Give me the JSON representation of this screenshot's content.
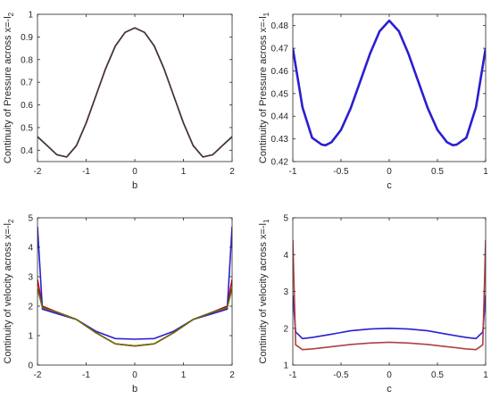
{
  "chart_data": [
    {
      "type": "line",
      "xlabel": "b",
      "ylabel": "Continuity of Pressure across x=-l",
      "ylabel_sub": "2",
      "xlim": [
        -2,
        2
      ],
      "ylim": [
        0.35,
        1.0
      ],
      "xticks": [
        -2,
        -1,
        0,
        1,
        2
      ],
      "yticks": [
        0.4,
        0.5,
        0.6,
        0.7,
        0.8,
        0.9,
        1
      ],
      "grid": false,
      "series": [
        {
          "color": "#c0000b",
          "x": [
            -2,
            -1.8,
            -1.6,
            -1.4,
            -1.2,
            -1.0,
            -0.8,
            -0.6,
            -0.4,
            -0.2,
            0,
            0.2,
            0.4,
            0.6,
            0.8,
            1.0,
            1.2,
            1.4,
            1.6,
            1.8,
            2.0
          ],
          "values": [
            0.46,
            0.42,
            0.38,
            0.37,
            0.42,
            0.52,
            0.64,
            0.76,
            0.86,
            0.92,
            0.94,
            0.92,
            0.86,
            0.76,
            0.64,
            0.52,
            0.42,
            0.37,
            0.38,
            0.42,
            0.46
          ]
        },
        {
          "color": "#3a3a3a",
          "x": [
            -2,
            -1.8,
            -1.6,
            -1.4,
            -1.2,
            -1.0,
            -0.8,
            -0.6,
            -0.4,
            -0.2,
            0,
            0.2,
            0.4,
            0.6,
            0.8,
            1.0,
            1.2,
            1.4,
            1.6,
            1.8,
            2.0
          ],
          "values": [
            0.46,
            0.42,
            0.38,
            0.37,
            0.42,
            0.52,
            0.64,
            0.76,
            0.86,
            0.92,
            0.94,
            0.92,
            0.86,
            0.76,
            0.64,
            0.52,
            0.42,
            0.37,
            0.38,
            0.42,
            0.46
          ]
        }
      ]
    },
    {
      "type": "line",
      "xlabel": "c",
      "ylabel": "Continuity of Pressure across x=-l",
      "ylabel_sub": "1",
      "xlim": [
        -1,
        1
      ],
      "ylim": [
        0.42,
        0.485
      ],
      "xticks": [
        -1,
        -0.5,
        0,
        0.5,
        1
      ],
      "yticks": [
        0.42,
        0.43,
        0.44,
        0.45,
        0.46,
        0.47,
        0.48
      ],
      "grid": false,
      "series": [
        {
          "color": "#2b1fd0",
          "x": [
            -1,
            -0.9,
            -0.8,
            -0.7,
            -0.66,
            -0.6,
            -0.5,
            -0.4,
            -0.3,
            -0.2,
            -0.1,
            0,
            0.1,
            0.2,
            0.3,
            0.4,
            0.5,
            0.6,
            0.66,
            0.7,
            0.8,
            0.9,
            1
          ],
          "values": [
            0.47,
            0.444,
            0.4305,
            0.4275,
            0.4272,
            0.4285,
            0.434,
            0.4435,
            0.4555,
            0.4675,
            0.4775,
            0.4822,
            0.4775,
            0.4675,
            0.4555,
            0.4435,
            0.434,
            0.4285,
            0.4272,
            0.4275,
            0.4305,
            0.444,
            0.47
          ]
        }
      ]
    },
    {
      "type": "line",
      "xlabel": "b",
      "ylabel": "Continuity of velocity across x=-l",
      "ylabel_sub": "2",
      "xlim": [
        -2,
        2
      ],
      "ylim": [
        0,
        5
      ],
      "xticks": [
        -2,
        -1,
        0,
        1,
        2
      ],
      "yticks": [
        0,
        1,
        2,
        3,
        4,
        5
      ],
      "grid": false,
      "series": [
        {
          "color": "#c0000b",
          "x": [
            -2,
            -1.9,
            -1.6,
            -1.2,
            -0.8,
            -0.4,
            0,
            0.4,
            0.8,
            1.2,
            1.6,
            1.9,
            2
          ],
          "values": [
            2.9,
            2.0,
            1.8,
            1.55,
            1.1,
            0.72,
            0.65,
            0.72,
            1.1,
            1.55,
            1.8,
            2.0,
            2.9
          ]
        },
        {
          "color": "#2b1fd0",
          "x": [
            -2,
            -1.9,
            -1.6,
            -1.2,
            -0.8,
            -0.4,
            0,
            0.4,
            0.8,
            1.2,
            1.6,
            1.9,
            2
          ],
          "values": [
            4.7,
            1.9,
            1.75,
            1.55,
            1.15,
            0.9,
            0.88,
            0.9,
            1.15,
            1.55,
            1.75,
            1.9,
            4.7
          ]
        },
        {
          "color": "#6b6b00",
          "x": [
            -2,
            -1.9,
            -1.6,
            -1.2,
            -0.8,
            -0.4,
            0,
            0.4,
            0.8,
            1.2,
            1.6,
            1.9,
            2
          ],
          "values": [
            2.6,
            1.95,
            1.8,
            1.55,
            1.1,
            0.72,
            0.65,
            0.72,
            1.1,
            1.55,
            1.8,
            1.95,
            2.6
          ]
        }
      ]
    },
    {
      "type": "line",
      "xlabel": "c",
      "ylabel": "Continuity of velocity across x=-l",
      "ylabel_sub": "1",
      "xlim": [
        -1,
        1
      ],
      "ylim": [
        1,
        5
      ],
      "xticks": [
        -1,
        -0.5,
        0,
        0.5,
        1
      ],
      "yticks": [
        1,
        2,
        3,
        4,
        5
      ],
      "grid": false,
      "series": [
        {
          "color": "#2b1fd0",
          "x": [
            -1,
            -0.97,
            -0.9,
            -0.8,
            -0.6,
            -0.4,
            -0.2,
            0,
            0.2,
            0.4,
            0.6,
            0.8,
            0.9,
            0.97,
            1
          ],
          "values": [
            2.9,
            1.9,
            1.72,
            1.75,
            1.84,
            1.93,
            1.98,
            2.0,
            1.98,
            1.93,
            1.84,
            1.75,
            1.72,
            1.9,
            2.9
          ]
        },
        {
          "color": "#b04040",
          "x": [
            -1,
            -0.97,
            -0.9,
            -0.8,
            -0.6,
            -0.4,
            -0.2,
            0,
            0.2,
            0.4,
            0.6,
            0.8,
            0.9,
            0.97,
            1
          ],
          "values": [
            4.4,
            1.55,
            1.42,
            1.44,
            1.5,
            1.56,
            1.6,
            1.62,
            1.6,
            1.56,
            1.5,
            1.44,
            1.42,
            1.55,
            4.4
          ]
        }
      ]
    }
  ]
}
